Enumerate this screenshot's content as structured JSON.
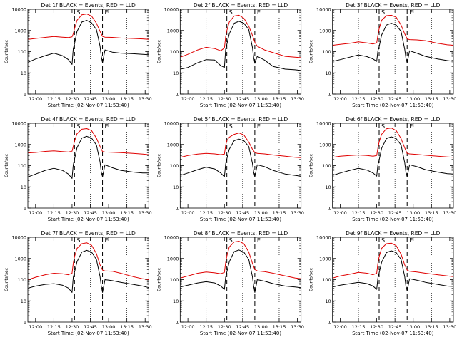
{
  "colors": {
    "background": "#ffffff",
    "axes": "#000000",
    "events_series": "#000000",
    "lld_series": "#e00000"
  },
  "shared": {
    "ylabel": "Counts/sec",
    "xlabel": "Start Time (02-Nov-07 11:53:40)",
    "x_tick_labels": [
      "12:00",
      "12:15",
      "12:30",
      "12:45",
      "13:00",
      "13:15",
      "13:30"
    ],
    "y_tick_labels": [
      "1",
      "10",
      "100",
      "1000",
      "10000"
    ],
    "x_ticks_min": [
      0,
      15,
      30,
      45,
      60,
      75,
      90
    ],
    "y_ticks": [
      1,
      10,
      100,
      1000,
      10000
    ],
    "xlim_min": [
      -6.33,
      93
    ],
    "ylim": [
      1,
      10000
    ],
    "y_scale": "log",
    "dotted_lines_min": [
      15,
      45,
      75
    ],
    "dashed_lines_min": [
      32,
      55
    ],
    "marker_S_min": 32,
    "marker_E_min": 55,
    "marker_S_label": "S",
    "marker_E_label": "E"
  },
  "chart_data": [
    {
      "type": "line",
      "title": "Det 1f BLACK = Events, RED = LLD",
      "series": [
        {
          "name": "Events",
          "x": [
            -6,
            0,
            8,
            15,
            22,
            27,
            30,
            31,
            32,
            34,
            38,
            42,
            46,
            50,
            53,
            54,
            55,
            57,
            63,
            70,
            80,
            88,
            93
          ],
          "y": [
            32,
            45,
            65,
            85,
            65,
            42,
            25,
            140,
            230,
            900,
            2500,
            3000,
            2300,
            1100,
            180,
            60,
            30,
            120,
            95,
            85,
            80,
            75,
            72
          ]
        },
        {
          "name": "LLD",
          "x": [
            -6,
            0,
            8,
            15,
            22,
            27,
            30,
            31,
            32,
            34,
            38,
            42,
            46,
            50,
            53,
            55,
            57,
            63,
            70,
            80,
            88,
            93
          ],
          "y": [
            380,
            420,
            470,
            520,
            480,
            460,
            500,
            700,
            1200,
            3000,
            5500,
            6000,
            4800,
            2200,
            900,
            520,
            480,
            470,
            440,
            420,
            400,
            380
          ]
        }
      ]
    },
    {
      "type": "line",
      "title": "Det 2f BLACK = Events, RED = LLD",
      "series": [
        {
          "name": "Events",
          "x": [
            -6,
            0,
            8,
            15,
            22,
            27,
            30,
            31,
            32,
            34,
            38,
            42,
            46,
            50,
            53,
            54,
            55,
            57,
            63,
            70,
            80,
            88,
            93
          ],
          "y": [
            15,
            18,
            30,
            42,
            40,
            22,
            18,
            130,
            220,
            700,
            2200,
            2700,
            2200,
            1100,
            160,
            55,
            28,
            60,
            40,
            20,
            15,
            14,
            13
          ]
        },
        {
          "name": "LLD",
          "x": [
            -6,
            0,
            8,
            15,
            22,
            27,
            30,
            31,
            32,
            34,
            38,
            42,
            46,
            50,
            53,
            55,
            57,
            63,
            70,
            80,
            88,
            93
          ],
          "y": [
            55,
            75,
            120,
            160,
            140,
            110,
            150,
            500,
            1000,
            2500,
            4800,
            5200,
            3800,
            1600,
            600,
            280,
            180,
            120,
            90,
            60,
            55,
            52
          ]
        }
      ]
    },
    {
      "type": "line",
      "title": "Det 3f BLACK = Events, RED = LLD",
      "series": [
        {
          "name": "Events",
          "x": [
            -6,
            0,
            8,
            15,
            22,
            27,
            30,
            31,
            32,
            34,
            38,
            42,
            46,
            50,
            53,
            54,
            55,
            57,
            63,
            70,
            80,
            88,
            93
          ],
          "y": [
            35,
            42,
            55,
            70,
            58,
            45,
            35,
            110,
            170,
            600,
            1800,
            2200,
            1800,
            900,
            130,
            50,
            30,
            110,
            85,
            60,
            45,
            38,
            35
          ]
        },
        {
          "name": "LLD",
          "x": [
            -6,
            0,
            8,
            15,
            22,
            27,
            30,
            31,
            32,
            34,
            38,
            42,
            46,
            50,
            53,
            55,
            57,
            63,
            70,
            80,
            88,
            93
          ],
          "y": [
            200,
            220,
            250,
            290,
            260,
            230,
            260,
            600,
            1200,
            3000,
            5000,
            5200,
            4200,
            1800,
            700,
            400,
            370,
            360,
            330,
            250,
            210,
            200
          ]
        }
      ]
    },
    {
      "type": "line",
      "title": "Det 4f BLACK = Events, RED = LLD",
      "series": [
        {
          "name": "Events",
          "x": [
            -6,
            0,
            8,
            15,
            22,
            27,
            30,
            31,
            32,
            34,
            38,
            42,
            46,
            50,
            53,
            54,
            55,
            57,
            63,
            70,
            80,
            88,
            93
          ],
          "y": [
            30,
            40,
            60,
            75,
            60,
            40,
            25,
            110,
            200,
            700,
            2000,
            2400,
            2000,
            950,
            150,
            50,
            30,
            110,
            80,
            60,
            50,
            45,
            45
          ]
        },
        {
          "name": "LLD",
          "x": [
            -6,
            0,
            8,
            15,
            22,
            27,
            30,
            31,
            32,
            34,
            38,
            42,
            46,
            50,
            53,
            55,
            57,
            63,
            70,
            80,
            88,
            93
          ],
          "y": [
            400,
            420,
            470,
            500,
            460,
            440,
            480,
            800,
            1400,
            3200,
            5200,
            5600,
            4500,
            2000,
            800,
            460,
            440,
            430,
            410,
            380,
            350,
            330
          ]
        }
      ]
    },
    {
      "type": "line",
      "title": "Det 5f BLACK = Events, RED = LLD",
      "series": [
        {
          "name": "Events",
          "x": [
            -6,
            0,
            8,
            15,
            22,
            27,
            30,
            31,
            32,
            34,
            38,
            42,
            46,
            50,
            53,
            54,
            55,
            57,
            63,
            70,
            80,
            88,
            93
          ],
          "y": [
            35,
            45,
            65,
            85,
            70,
            45,
            30,
            120,
            210,
            600,
            1500,
            1800,
            1500,
            800,
            130,
            50,
            30,
            110,
            90,
            60,
            40,
            35,
            32
          ]
        },
        {
          "name": "LLD",
          "x": [
            -6,
            0,
            8,
            15,
            22,
            27,
            30,
            31,
            32,
            34,
            38,
            42,
            46,
            50,
            53,
            55,
            57,
            63,
            70,
            80,
            88,
            93
          ],
          "y": [
            250,
            300,
            350,
            380,
            360,
            330,
            350,
            900,
            1500,
            2200,
            3000,
            3500,
            2800,
            1300,
            600,
            420,
            380,
            360,
            320,
            280,
            250,
            240
          ]
        }
      ]
    },
    {
      "type": "line",
      "title": "Det 6f BLACK = Events, RED = LLD",
      "series": [
        {
          "name": "Events",
          "x": [
            -6,
            0,
            8,
            15,
            22,
            27,
            30,
            31,
            32,
            34,
            38,
            42,
            46,
            50,
            53,
            54,
            55,
            57,
            63,
            70,
            80,
            88,
            93
          ],
          "y": [
            35,
            45,
            60,
            75,
            62,
            45,
            32,
            110,
            180,
            650,
            1900,
            2300,
            1900,
            950,
            140,
            50,
            30,
            110,
            90,
            65,
            50,
            42,
            40
          ]
        },
        {
          "name": "LLD",
          "x": [
            -6,
            0,
            8,
            15,
            22,
            27,
            30,
            31,
            32,
            34,
            38,
            42,
            46,
            50,
            53,
            55,
            57,
            63,
            70,
            80,
            88,
            93
          ],
          "y": [
            250,
            280,
            300,
            320,
            300,
            280,
            300,
            700,
            1300,
            3000,
            5500,
            6000,
            4500,
            1900,
            700,
            380,
            360,
            340,
            310,
            280,
            260,
            250
          ]
        }
      ]
    },
    {
      "type": "line",
      "title": "Det 7f BLACK = Events, RED = LLD",
      "series": [
        {
          "name": "Events",
          "x": [
            -6,
            0,
            8,
            15,
            22,
            27,
            30,
            31,
            32,
            34,
            38,
            42,
            46,
            50,
            53,
            54,
            55,
            57,
            63,
            70,
            80,
            88,
            93
          ],
          "y": [
            40,
            50,
            60,
            65,
            55,
            40,
            25,
            130,
            220,
            700,
            2000,
            2400,
            2000,
            900,
            140,
            50,
            25,
            100,
            90,
            75,
            60,
            50,
            42
          ]
        },
        {
          "name": "LLD",
          "x": [
            -6,
            0,
            8,
            15,
            22,
            27,
            30,
            31,
            32,
            34,
            38,
            42,
            46,
            50,
            53,
            55,
            57,
            63,
            70,
            80,
            88,
            93
          ],
          "y": [
            100,
            130,
            170,
            200,
            190,
            170,
            200,
            600,
            1200,
            3000,
            5000,
            5500,
            4200,
            1700,
            500,
            280,
            260,
            250,
            200,
            140,
            110,
            100
          ]
        }
      ]
    },
    {
      "type": "line",
      "title": "Det 8f BLACK = Events, RED = LLD",
      "series": [
        {
          "name": "Events",
          "x": [
            -6,
            0,
            8,
            15,
            22,
            27,
            30,
            31,
            32,
            34,
            38,
            42,
            46,
            50,
            53,
            54,
            55,
            57,
            63,
            70,
            80,
            88,
            93
          ],
          "y": [
            45,
            55,
            70,
            80,
            70,
            50,
            35,
            130,
            230,
            700,
            2100,
            2500,
            2000,
            900,
            140,
            50,
            25,
            100,
            85,
            65,
            50,
            45,
            42
          ]
        },
        {
          "name": "LLD",
          "x": [
            -6,
            0,
            8,
            15,
            22,
            27,
            30,
            31,
            32,
            34,
            38,
            42,
            46,
            50,
            53,
            55,
            57,
            63,
            70,
            80,
            88,
            93
          ],
          "y": [
            120,
            150,
            200,
            230,
            210,
            190,
            220,
            650,
            1300,
            3500,
            6000,
            6500,
            5000,
            2000,
            600,
            300,
            260,
            240,
            200,
            150,
            120,
            110
          ]
        }
      ]
    },
    {
      "type": "line",
      "title": "Det 9f BLACK = Events, RED = LLD",
      "series": [
        {
          "name": "Events",
          "x": [
            -6,
            0,
            8,
            15,
            22,
            27,
            30,
            31,
            32,
            34,
            38,
            42,
            46,
            50,
            53,
            54,
            55,
            57,
            63,
            70,
            80,
            88,
            93
          ],
          "y": [
            45,
            55,
            65,
            75,
            65,
            50,
            35,
            120,
            210,
            650,
            1900,
            2300,
            1900,
            900,
            140,
            50,
            30,
            110,
            95,
            75,
            60,
            50,
            48
          ]
        },
        {
          "name": "LLD",
          "x": [
            -6,
            0,
            8,
            15,
            22,
            27,
            30,
            31,
            32,
            34,
            38,
            42,
            46,
            50,
            53,
            55,
            57,
            63,
            70,
            80,
            88,
            93
          ],
          "y": [
            120,
            150,
            180,
            220,
            200,
            170,
            200,
            600,
            1200,
            3000,
            5000,
            5300,
            4000,
            1600,
            500,
            280,
            250,
            230,
            200,
            170,
            150,
            140
          ]
        }
      ]
    }
  ]
}
